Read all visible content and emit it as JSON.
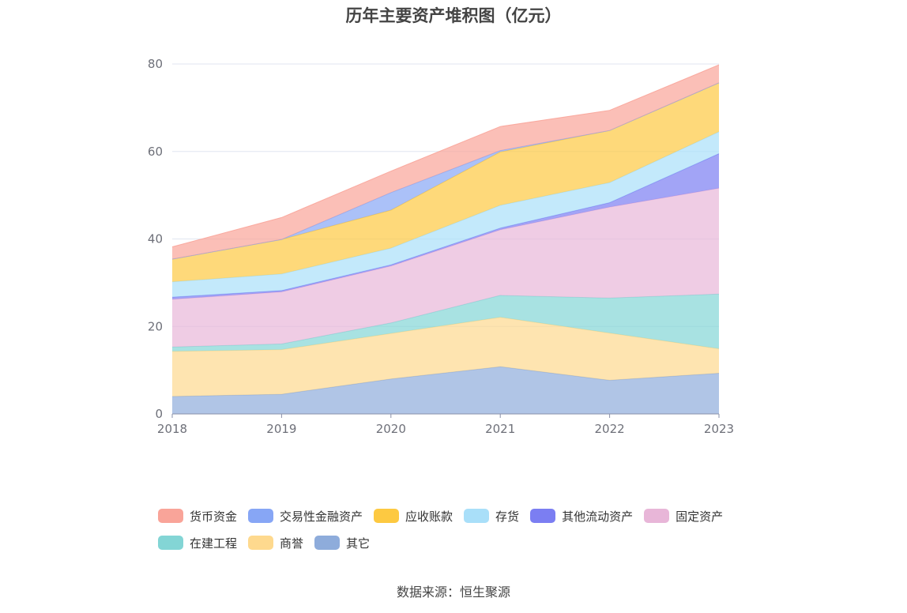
{
  "chart_data": {
    "type": "area",
    "stacked": true,
    "title": "历年主要资产堆积图（亿元）",
    "x": [
      "2018",
      "2019",
      "2020",
      "2021",
      "2022",
      "2023"
    ],
    "ylim": [
      0,
      80
    ],
    "yticks": [
      0,
      20,
      40,
      60,
      80
    ],
    "grid": true,
    "legend_position": "bottom",
    "series": [
      {
        "name": "其它",
        "color": "#8eacdb",
        "values": [
          4.0,
          4.5,
          8.0,
          10.8,
          7.7,
          9.3
        ]
      },
      {
        "name": "商誉",
        "color": "#fed98e",
        "values": [
          10.3,
          10.2,
          10.4,
          11.3,
          10.8,
          5.6
        ]
      },
      {
        "name": "在建工程",
        "color": "#83d5d5",
        "values": [
          1.0,
          1.3,
          2.4,
          5.0,
          8.0,
          12.5
        ]
      },
      {
        "name": "固定资产",
        "color": "#e8b6d8",
        "values": [
          10.9,
          11.9,
          13.0,
          15.0,
          20.8,
          24.2
        ]
      },
      {
        "name": "其他流动资产",
        "color": "#7b7ef2",
        "values": [
          0.5,
          0.3,
          0.3,
          0.4,
          1.0,
          7.9
        ]
      },
      {
        "name": "存货",
        "color": "#a9dff9",
        "values": [
          3.5,
          3.8,
          3.8,
          5.2,
          4.6,
          5.0
        ]
      },
      {
        "name": "应收账款",
        "color": "#fdc941",
        "values": [
          5.2,
          7.9,
          8.7,
          12.2,
          11.9,
          11.2
        ]
      },
      {
        "name": "交易性金融资产",
        "color": "#87a6f5",
        "values": [
          0.0,
          0.0,
          4.0,
          0.3,
          0.0,
          0.0
        ]
      },
      {
        "name": "货币资金",
        "color": "#f9a499",
        "values": [
          2.8,
          5.0,
          4.9,
          5.5,
          4.6,
          4.1
        ]
      }
    ]
  },
  "legend": {
    "items": [
      {
        "name": "货币资金",
        "color": "#f9a499"
      },
      {
        "name": "交易性金融资产",
        "color": "#87a6f5"
      },
      {
        "name": "应收账款",
        "color": "#fdc941"
      },
      {
        "name": "存货",
        "color": "#a9dff9"
      },
      {
        "name": "其他流动资产",
        "color": "#7b7ef2"
      },
      {
        "name": "固定资产",
        "color": "#e8b6d8"
      },
      {
        "name": "在建工程",
        "color": "#83d5d5"
      },
      {
        "name": "商誉",
        "color": "#fed98e"
      },
      {
        "name": "其它",
        "color": "#8eacdb"
      }
    ]
  },
  "source": "数据来源：恒生聚源"
}
